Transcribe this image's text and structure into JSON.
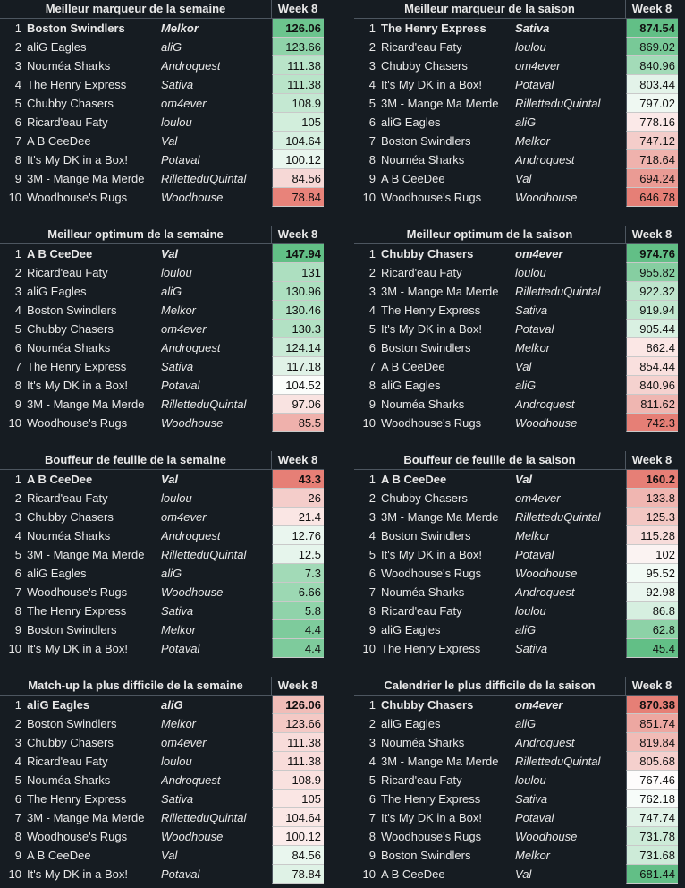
{
  "tables": [
    {
      "title": "Meilleur marqueur de la semaine",
      "week": "Week 8",
      "rows": [
        {
          "rank": "1",
          "team": "Boston Swindlers",
          "owner": "Melkor",
          "value": "126.06",
          "bg": "#6cc48e"
        },
        {
          "rank": "2",
          "team": "aliG Eagles",
          "owner": "aliG",
          "value": "123.66",
          "bg": "#8fd3a9"
        },
        {
          "rank": "3",
          "team": "Nouméa Sharks",
          "owner": "Androquest",
          "value": "111.38",
          "bg": "#b9e4c9"
        },
        {
          "rank": "4",
          "team": "The Henry Express",
          "owner": "Sativa",
          "value": "111.38",
          "bg": "#b9e4c9"
        },
        {
          "rank": "5",
          "team": "Chubby Chasers",
          "owner": "om4ever",
          "value": "108.9",
          "bg": "#c4e8d2"
        },
        {
          "rank": "6",
          "team": "Ricard'eau Faty",
          "owner": "loulou",
          "value": "105",
          "bg": "#d2eedc"
        },
        {
          "rank": "7",
          "team": "A B CeeDee",
          "owner": "Val",
          "value": "104.64",
          "bg": "#d6efe0"
        },
        {
          "rank": "8",
          "team": "It's My DK in a Box!",
          "owner": "Potaval",
          "value": "100.12",
          "bg": "#e9f6ee"
        },
        {
          "rank": "9",
          "team": "3M - Mange Ma Merde",
          "owner": "RilletteduQuintal",
          "value": "84.56",
          "bg": "#f6d8d6"
        },
        {
          "rank": "10",
          "team": "Woodhouse's Rugs",
          "owner": "Woodhouse",
          "value": "78.84",
          "bg": "#e8837a"
        }
      ]
    },
    {
      "title": "Meilleur marqueur de la saison",
      "week": "Week 8",
      "rows": [
        {
          "rank": "1",
          "team": "The Henry Express",
          "owner": "Sativa",
          "value": "874.54",
          "bg": "#62bf86"
        },
        {
          "rank": "2",
          "team": "Ricard'eau Faty",
          "owner": "loulou",
          "value": "869.02",
          "bg": "#78c997"
        },
        {
          "rank": "3",
          "team": "Chubby Chasers",
          "owner": "om4ever",
          "value": "840.96",
          "bg": "#a3dbb8"
        },
        {
          "rank": "4",
          "team": "It's My DK in a Box!",
          "owner": "Potaval",
          "value": "803.44",
          "bg": "#e3f3e9"
        },
        {
          "rank": "5",
          "team": "3M - Mange Ma Merde",
          "owner": "RilletteduQuintal",
          "value": "797.02",
          "bg": "#eff8f2"
        },
        {
          "rank": "6",
          "team": "aliG Eagles",
          "owner": "aliG",
          "value": "778.16",
          "bg": "#fbe9e8"
        },
        {
          "rank": "7",
          "team": "Boston Swindlers",
          "owner": "Melkor",
          "value": "747.12",
          "bg": "#f4cdca"
        },
        {
          "rank": "8",
          "team": "Nouméa Sharks",
          "owner": "Androquest",
          "value": "718.64",
          "bg": "#efb2ad"
        },
        {
          "rank": "9",
          "team": "A B CeeDee",
          "owner": "Val",
          "value": "694.24",
          "bg": "#ea9b94"
        },
        {
          "rank": "10",
          "team": "Woodhouse's Rugs",
          "owner": "Woodhouse",
          "value": "646.78",
          "bg": "#e67f76"
        }
      ]
    },
    {
      "title": "Meilleur optimum de la semaine",
      "week": "Week 8",
      "rows": [
        {
          "rank": "1",
          "team": "A B CeeDee",
          "owner": "Val",
          "value": "147.94",
          "bg": "#62bf86"
        },
        {
          "rank": "2",
          "team": "Ricard'eau Faty",
          "owner": "loulou",
          "value": "131",
          "bg": "#addfc0"
        },
        {
          "rank": "3",
          "team": "aliG Eagles",
          "owner": "aliG",
          "value": "130.96",
          "bg": "#addfc0"
        },
        {
          "rank": "4",
          "team": "Boston Swindlers",
          "owner": "Melkor",
          "value": "130.46",
          "bg": "#b0e0c2"
        },
        {
          "rank": "5",
          "team": "Chubby Chasers",
          "owner": "om4ever",
          "value": "130.3",
          "bg": "#b2e1c4"
        },
        {
          "rank": "6",
          "team": "Nouméa Sharks",
          "owner": "Androquest",
          "value": "124.14",
          "bg": "#c9ead6"
        },
        {
          "rank": "7",
          "team": "The Henry Express",
          "owner": "Sativa",
          "value": "117.18",
          "bg": "#e0f2e7"
        },
        {
          "rank": "8",
          "team": "It's My DK in a Box!",
          "owner": "Potaval",
          "value": "104.52",
          "bg": "#fbfdfb"
        },
        {
          "rank": "9",
          "team": "3M - Mange Ma Merde",
          "owner": "RilletteduQuintal",
          "value": "97.06",
          "bg": "#f9e3e1"
        },
        {
          "rank": "10",
          "team": "Woodhouse's Rugs",
          "owner": "Woodhouse",
          "value": "85.5",
          "bg": "#efb1ac"
        }
      ]
    },
    {
      "title": "Meilleur optimum de la saison",
      "week": "Week 8",
      "rows": [
        {
          "rank": "1",
          "team": "Chubby Chasers",
          "owner": "om4ever",
          "value": "974.76",
          "bg": "#62bf86"
        },
        {
          "rank": "2",
          "team": "Ricard'eau Faty",
          "owner": "loulou",
          "value": "955.82",
          "bg": "#86cea1"
        },
        {
          "rank": "3",
          "team": "3M - Mange Ma Merde",
          "owner": "RilletteduQuintal",
          "value": "922.32",
          "bg": "#bde5cc"
        },
        {
          "rank": "4",
          "team": "The Henry Express",
          "owner": "Sativa",
          "value": "919.94",
          "bg": "#c1e7cf"
        },
        {
          "rank": "5",
          "team": "It's My DK in a Box!",
          "owner": "Potaval",
          "value": "905.44",
          "bg": "#d9f0e2"
        },
        {
          "rank": "6",
          "team": "Boston Swindlers",
          "owner": "Melkor",
          "value": "862.4",
          "bg": "#fbe7e5"
        },
        {
          "rank": "7",
          "team": "A B CeeDee",
          "owner": "Val",
          "value": "854.44",
          "bg": "#f9e0de"
        },
        {
          "rank": "8",
          "team": "aliG Eagles",
          "owner": "aliG",
          "value": "840.96",
          "bg": "#f5d2cf"
        },
        {
          "rank": "9",
          "team": "Nouméa Sharks",
          "owner": "Androquest",
          "value": "811.62",
          "bg": "#efb6b1"
        },
        {
          "rank": "10",
          "team": "Woodhouse's Rugs",
          "owner": "Woodhouse",
          "value": "742.3",
          "bg": "#e67f76"
        }
      ]
    },
    {
      "title": "Bouffeur de feuille de la semaine",
      "week": "Week 8",
      "rows": [
        {
          "rank": "1",
          "team": "A B CeeDee",
          "owner": "Val",
          "value": "43.3",
          "bg": "#e67f76"
        },
        {
          "rank": "2",
          "team": "Ricard'eau Faty",
          "owner": "loulou",
          "value": "26",
          "bg": "#f4cdca"
        },
        {
          "rank": "3",
          "team": "Chubby Chasers",
          "owner": "om4ever",
          "value": "21.4",
          "bg": "#fae6e4"
        },
        {
          "rank": "4",
          "team": "Nouméa Sharks",
          "owner": "Androquest",
          "value": "12.76",
          "bg": "#eaf6ef"
        },
        {
          "rank": "5",
          "team": "3M - Mange Ma Merde",
          "owner": "RilletteduQuintal",
          "value": "12.5",
          "bg": "#e6f5ec"
        },
        {
          "rank": "6",
          "team": "aliG Eagles",
          "owner": "aliG",
          "value": "7.3",
          "bg": "#a2dab7"
        },
        {
          "rank": "7",
          "team": "Woodhouse's Rugs",
          "owner": "Woodhouse",
          "value": "6.66",
          "bg": "#9cd8b3"
        },
        {
          "rank": "8",
          "team": "The Henry Express",
          "owner": "Sativa",
          "value": "5.8",
          "bg": "#90d3aa"
        },
        {
          "rank": "9",
          "team": "Boston Swindlers",
          "owner": "Melkor",
          "value": "4.4",
          "bg": "#7ecb9c"
        },
        {
          "rank": "10",
          "team": "It's My DK in a Box!",
          "owner": "Potaval",
          "value": "4.4",
          "bg": "#7ecb9c"
        }
      ]
    },
    {
      "title": "Bouffeur de feuille de la saison",
      "week": "Week 8",
      "rows": [
        {
          "rank": "1",
          "team": "A B CeeDee",
          "owner": "Val",
          "value": "160.2",
          "bg": "#e67f76"
        },
        {
          "rank": "2",
          "team": "Chubby Chasers",
          "owner": "om4ever",
          "value": "133.8",
          "bg": "#f0b6b1"
        },
        {
          "rank": "3",
          "team": "3M - Mange Ma Merde",
          "owner": "RilletteduQuintal",
          "value": "125.3",
          "bg": "#f3c7c3"
        },
        {
          "rank": "4",
          "team": "Boston Swindlers",
          "owner": "Melkor",
          "value": "115.28",
          "bg": "#f7dcda"
        },
        {
          "rank": "5",
          "team": "It's My DK in a Box!",
          "owner": "Potaval",
          "value": "102",
          "bg": "#fbf3f2"
        },
        {
          "rank": "6",
          "team": "Woodhouse's Rugs",
          "owner": "Woodhouse",
          "value": "95.52",
          "bg": "#f2faf5"
        },
        {
          "rank": "7",
          "team": "Nouméa Sharks",
          "owner": "Androquest",
          "value": "92.98",
          "bg": "#eaf6ef"
        },
        {
          "rank": "8",
          "team": "Ricard'eau Faty",
          "owner": "loulou",
          "value": "86.8",
          "bg": "#d6efe0"
        },
        {
          "rank": "9",
          "team": "aliG Eagles",
          "owner": "aliG",
          "value": "62.8",
          "bg": "#8dd2a7"
        },
        {
          "rank": "10",
          "team": "The Henry Express",
          "owner": "Sativa",
          "value": "45.4",
          "bg": "#62bf86"
        }
      ]
    },
    {
      "title": "Match-up la plus difficile de la semaine",
      "week": "Week 8",
      "rows": [
        {
          "rank": "1",
          "team": "aliG Eagles",
          "owner": "aliG",
          "value": "126.06",
          "bg": "#f1bdb8"
        },
        {
          "rank": "2",
          "team": "Boston Swindlers",
          "owner": "Melkor",
          "value": "123.66",
          "bg": "#f4c9c5"
        },
        {
          "rank": "3",
          "team": "Chubby Chasers",
          "owner": "om4ever",
          "value": "111.38",
          "bg": "#f8dcda"
        },
        {
          "rank": "4",
          "team": "Ricard'eau Faty",
          "owner": "loulou",
          "value": "111.38",
          "bg": "#f8dcda"
        },
        {
          "rank": "5",
          "team": "Nouméa Sharks",
          "owner": "Androquest",
          "value": "108.9",
          "bg": "#f9e1df"
        },
        {
          "rank": "6",
          "team": "The Henry Express",
          "owner": "Sativa",
          "value": "105",
          "bg": "#fae6e4"
        },
        {
          "rank": "7",
          "team": "3M - Mange Ma Merde",
          "owner": "RilletteduQuintal",
          "value": "104.64",
          "bg": "#fae7e5"
        },
        {
          "rank": "8",
          "team": "Woodhouse's Rugs",
          "owner": "Woodhouse",
          "value": "100.12",
          "bg": "#fbeceb"
        },
        {
          "rank": "9",
          "team": "A B CeeDee",
          "owner": "Val",
          "value": "84.56",
          "bg": "#e9f6ee"
        },
        {
          "rank": "10",
          "team": "It's My DK in a Box!",
          "owner": "Potaval",
          "value": "78.84",
          "bg": "#dff2e6"
        }
      ]
    },
    {
      "title": "Calendrier le plus difficile de la saison",
      "week": "Week 8",
      "rows": [
        {
          "rank": "1",
          "team": "Chubby Chasers",
          "owner": "om4ever",
          "value": "870.38",
          "bg": "#e67f76"
        },
        {
          "rank": "2",
          "team": "aliG Eagles",
          "owner": "aliG",
          "value": "851.74",
          "bg": "#eda7a1"
        },
        {
          "rank": "3",
          "team": "Nouméa Sharks",
          "owner": "Androquest",
          "value": "819.84",
          "bg": "#f1bbb6"
        },
        {
          "rank": "4",
          "team": "3M - Mange Ma Merde",
          "owner": "RilletteduQuintal",
          "value": "805.68",
          "bg": "#f5d0cd"
        },
        {
          "rank": "5",
          "team": "Ricard'eau Faty",
          "owner": "loulou",
          "value": "767.46",
          "bg": "#fefcfc"
        },
        {
          "rank": "6",
          "team": "The Henry Express",
          "owner": "Sativa",
          "value": "762.18",
          "bg": "#f7fcf9"
        },
        {
          "rank": "7",
          "team": "It's My DK in a Box!",
          "owner": "Potaval",
          "value": "747.74",
          "bg": "#e1f3e8"
        },
        {
          "rank": "8",
          "team": "Woodhouse's Rugs",
          "owner": "Woodhouse",
          "value": "731.78",
          "bg": "#cdebd8"
        },
        {
          "rank": "9",
          "team": "Boston Swindlers",
          "owner": "Melkor",
          "value": "731.68",
          "bg": "#cdebd8"
        },
        {
          "rank": "10",
          "team": "A B CeeDee",
          "owner": "Val",
          "value": "681.44",
          "bg": "#62bf86"
        }
      ]
    }
  ]
}
